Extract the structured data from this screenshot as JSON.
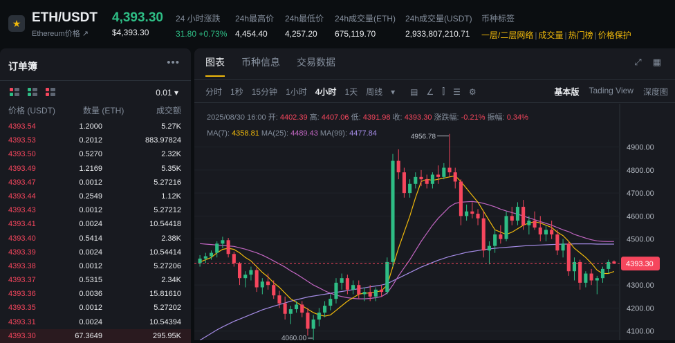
{
  "header": {
    "symbol": "ETH/USDT",
    "subtitle": "Ethereum价格 ↗",
    "last_price": "4,393.30",
    "last_price_usd": "$4,393.30",
    "stats": [
      {
        "label": "24 小时涨跌",
        "value": "31.80 +0.73%",
        "tone": "green"
      },
      {
        "label": "24h最高价",
        "value": "4,454.40",
        "tone": "normal"
      },
      {
        "label": "24h最低价",
        "value": "4,257.20",
        "tone": "normal"
      },
      {
        "label": "24h成交量(ETH)",
        "value": "675,119.70",
        "tone": "normal"
      },
      {
        "label": "24h成交量(USDT)",
        "value": "2,933,807,210.71",
        "tone": "normal"
      }
    ],
    "tags_label": "币种标签",
    "tags": [
      "一层/二层网络",
      "成交量",
      "热门榜",
      "价格保护"
    ]
  },
  "orderbook": {
    "title": "订单簿",
    "precision": "0.01 ▾",
    "columns": [
      "价格 (USDT)",
      "数量 (ETH)",
      "成交额"
    ],
    "rows": [
      {
        "price": "4393.54",
        "qty": "1.2000",
        "total": "5.27K"
      },
      {
        "price": "4393.53",
        "qty": "0.2012",
        "total": "883.97824"
      },
      {
        "price": "4393.50",
        "qty": "0.5270",
        "total": "2.32K"
      },
      {
        "price": "4393.49",
        "qty": "1.2169",
        "total": "5.35K"
      },
      {
        "price": "4393.47",
        "qty": "0.0012",
        "total": "5.27216"
      },
      {
        "price": "4393.44",
        "qty": "0.2549",
        "total": "1.12K"
      },
      {
        "price": "4393.43",
        "qty": "0.0012",
        "total": "5.27212"
      },
      {
        "price": "4393.41",
        "qty": "0.0024",
        "total": "10.54418"
      },
      {
        "price": "4393.40",
        "qty": "0.5414",
        "total": "2.38K"
      },
      {
        "price": "4393.39",
        "qty": "0.0024",
        "total": "10.54414"
      },
      {
        "price": "4393.38",
        "qty": "0.0012",
        "total": "5.27206"
      },
      {
        "price": "4393.37",
        "qty": "0.5315",
        "total": "2.34K"
      },
      {
        "price": "4393.36",
        "qty": "0.0036",
        "total": "15.81610"
      },
      {
        "price": "4393.35",
        "qty": "0.0012",
        "total": "5.27202"
      },
      {
        "price": "4393.31",
        "qty": "0.0024",
        "total": "10.54394"
      },
      {
        "price": "4393.30",
        "qty": "67.3649",
        "total": "295.95K"
      }
    ]
  },
  "chart_panel": {
    "tabs": [
      "图表",
      "币种信息",
      "交易数据"
    ],
    "intervals": [
      "分时",
      "1秒",
      "15分钟",
      "1小时",
      "4小时",
      "1天",
      "周线",
      "▾"
    ],
    "active_interval": "4小时",
    "views": [
      "基本版",
      "Tading View",
      "深度图"
    ],
    "ohlc": {
      "time": "2025/08/30 16:00",
      "open_label": "开:",
      "open": "4402.39",
      "high_label": "高:",
      "high": "4407.06",
      "low_label": "低:",
      "low": "4391.98",
      "close_label": "收:",
      "close": "4393.30",
      "change_label": "涨跌幅:",
      "change": "-0.21%",
      "amp_label": "振幅:",
      "amp": "0.34%"
    },
    "ma": {
      "ma7_label": "MA(7):",
      "ma7": "4358.81",
      "ma25_label": "MA(25):",
      "ma25": "4489.43",
      "ma99_label": "MA(99):",
      "ma99": "4477.84"
    },
    "colors": {
      "up": "#2ebd85",
      "down": "#f6465d",
      "ma7": "#f0b90b",
      "ma25": "#c266c2",
      "ma99": "#a58ce6"
    }
  },
  "chart_data": {
    "type": "candlestick",
    "yticks": [
      4100,
      4200,
      4300,
      4400,
      4500,
      4600,
      4700,
      4800,
      4900
    ],
    "ytick_labels": [
      "4100.00",
      "4200.00",
      "4300.00",
      "4400.00",
      "4500.00",
      "4600.00",
      "4700.00",
      "4800.00",
      "4900.00"
    ],
    "ylim": [
      4060,
      4980
    ],
    "current_price": 4393.3,
    "current_price_label": "4393.30",
    "max_label": "4956.78",
    "min_label": "4060.00",
    "candles": [
      [
        4395,
        4430,
        4380,
        4415
      ],
      [
        4415,
        4440,
        4395,
        4425
      ],
      [
        4425,
        4450,
        4410,
        4440
      ],
      [
        4440,
        4490,
        4420,
        4480
      ],
      [
        4480,
        4510,
        4460,
        4495
      ],
      [
        4495,
        4505,
        4420,
        4435
      ],
      [
        4435,
        4445,
        4380,
        4395
      ],
      [
        4395,
        4400,
        4300,
        4330
      ],
      [
        4330,
        4360,
        4290,
        4345
      ],
      [
        4345,
        4380,
        4320,
        4365
      ],
      [
        4365,
        4375,
        4270,
        4290
      ],
      [
        4290,
        4330,
        4260,
        4315
      ],
      [
        4315,
        4350,
        4280,
        4300
      ],
      [
        4300,
        4320,
        4240,
        4255
      ],
      [
        4255,
        4275,
        4200,
        4220
      ],
      [
        4220,
        4250,
        4150,
        4175
      ],
      [
        4175,
        4210,
        4130,
        4195
      ],
      [
        4195,
        4230,
        4180,
        4215
      ],
      [
        4215,
        4230,
        4160,
        4180
      ],
      [
        4180,
        4200,
        4080,
        4110
      ],
      [
        4110,
        4170,
        4060,
        4150
      ],
      [
        4150,
        4200,
        4120,
        4180
      ],
      [
        4180,
        4230,
        4160,
        4210
      ],
      [
        4210,
        4260,
        4190,
        4240
      ],
      [
        4240,
        4330,
        4220,
        4310
      ],
      [
        4310,
        4350,
        4280,
        4330
      ],
      [
        4330,
        4345,
        4260,
        4280
      ],
      [
        4280,
        4320,
        4260,
        4300
      ],
      [
        4300,
        4320,
        4240,
        4260
      ],
      [
        4260,
        4290,
        4230,
        4270
      ],
      [
        4270,
        4300,
        4230,
        4250
      ],
      [
        4250,
        4290,
        4230,
        4280
      ],
      [
        4280,
        4300,
        4250,
        4270
      ],
      [
        4270,
        4420,
        4260,
        4400
      ],
      [
        4400,
        4870,
        4380,
        4840
      ],
      [
        4840,
        4890,
        4760,
        4790
      ],
      [
        4790,
        4810,
        4680,
        4700
      ],
      [
        4700,
        4760,
        4680,
        4740
      ],
      [
        4740,
        4790,
        4720,
        4770
      ],
      [
        4770,
        4800,
        4730,
        4760
      ],
      [
        4760,
        4780,
        4720,
        4740
      ],
      [
        4740,
        4790,
        4720,
        4780
      ],
      [
        4780,
        4820,
        4740,
        4770
      ],
      [
        4770,
        4830,
        4760,
        4810
      ],
      [
        4810,
        4957,
        4770,
        4790
      ],
      [
        4790,
        4810,
        4720,
        4750
      ],
      [
        4750,
        4760,
        4560,
        4600
      ],
      [
        4600,
        4650,
        4580,
        4620
      ],
      [
        4620,
        4660,
        4590,
        4610
      ],
      [
        4610,
        4630,
        4560,
        4590
      ],
      [
        4590,
        4620,
        4420,
        4450
      ],
      [
        4450,
        4490,
        4390,
        4470
      ],
      [
        4470,
        4540,
        4440,
        4520
      ],
      [
        4520,
        4560,
        4480,
        4500
      ],
      [
        4500,
        4620,
        4490,
        4600
      ],
      [
        4600,
        4640,
        4560,
        4580
      ],
      [
        4580,
        4660,
        4560,
        4640
      ],
      [
        4640,
        4670,
        4540,
        4560
      ],
      [
        4560,
        4600,
        4520,
        4580
      ],
      [
        4580,
        4620,
        4540,
        4550
      ],
      [
        4550,
        4600,
        4490,
        4520
      ],
      [
        4520,
        4560,
        4490,
        4540
      ],
      [
        4540,
        4580,
        4500,
        4520
      ],
      [
        4520,
        4540,
        4430,
        4450
      ],
      [
        4450,
        4500,
        4420,
        4480
      ],
      [
        4480,
        4490,
        4340,
        4360
      ],
      [
        4360,
        4420,
        4320,
        4400
      ],
      [
        4400,
        4410,
        4280,
        4310
      ],
      [
        4310,
        4360,
        4290,
        4350
      ],
      [
        4350,
        4370,
        4300,
        4320
      ],
      [
        4320,
        4340,
        4260,
        4330
      ],
      [
        4330,
        4380,
        4310,
        4370
      ],
      [
        4370,
        4410,
        4350,
        4400
      ],
      [
        4402.39,
        4407.06,
        4391.98,
        4393.3
      ]
    ],
    "ma7": [
      4400,
      4410,
      4420,
      4440,
      4455,
      4460,
      4455,
      4440,
      4420,
      4405,
      4380,
      4355,
      4335,
      4310,
      4290,
      4265,
      4240,
      4225,
      4210,
      4195,
      4180,
      4170,
      4165,
      4170,
      4190,
      4210,
      4230,
      4245,
      4260,
      4265,
      4265,
      4270,
      4275,
      4300,
      4380,
      4460,
      4530,
      4600,
      4680,
      4750,
      4760,
      4755,
      4760,
      4765,
      4770,
      4775,
      4750,
      4720,
      4690,
      4660,
      4620,
      4580,
      4540,
      4530,
      4520,
      4530,
      4545,
      4560,
      4570,
      4575,
      4570,
      4560,
      4550,
      4530,
      4515,
      4490,
      4460,
      4440,
      4420,
      4395,
      4365,
      4350,
      4350,
      4358.81
    ],
    "ma25": [
      4480,
      4478,
      4476,
      4474,
      4472,
      4470,
      4468,
      4462,
      4456,
      4448,
      4440,
      4430,
      4418,
      4405,
      4392,
      4378,
      4362,
      4348,
      4332,
      4316,
      4300,
      4288,
      4275,
      4264,
      4256,
      4250,
      4245,
      4242,
      4240,
      4240,
      4242,
      4245,
      4250,
      4265,
      4300,
      4340,
      4375,
      4410,
      4450,
      4490,
      4525,
      4560,
      4590,
      4615,
      4640,
      4655,
      4660,
      4662,
      4663,
      4660,
      4655,
      4648,
      4640,
      4630,
      4622,
      4615,
      4608,
      4600,
      4592,
      4584,
      4576,
      4568,
      4560,
      4550,
      4540,
      4532,
      4520,
      4512,
      4504,
      4497,
      4492,
      4490,
      4489,
      4489.43
    ],
    "ma99": [
      4060,
      4075,
      4090,
      4105,
      4118,
      4130,
      4142,
      4152,
      4162,
      4172,
      4182,
      4192,
      4200,
      4208,
      4215,
      4222,
      4230,
      4236,
      4242,
      4248,
      4252,
      4256,
      4260,
      4264,
      4268,
      4272,
      4276,
      4280,
      4284,
      4288,
      4292,
      4296,
      4300,
      4306,
      4318,
      4330,
      4342,
      4354,
      4366,
      4378,
      4388,
      4398,
      4408,
      4416,
      4424,
      4430,
      4436,
      4442,
      4446,
      4450,
      4454,
      4457,
      4460,
      4462,
      4464,
      4466,
      4468,
      4470,
      4472,
      4473,
      4474,
      4475,
      4476,
      4477,
      4478,
      4478,
      4479,
      4479,
      4479,
      4479,
      4478,
      4478,
      4478,
      4477.84
    ]
  }
}
